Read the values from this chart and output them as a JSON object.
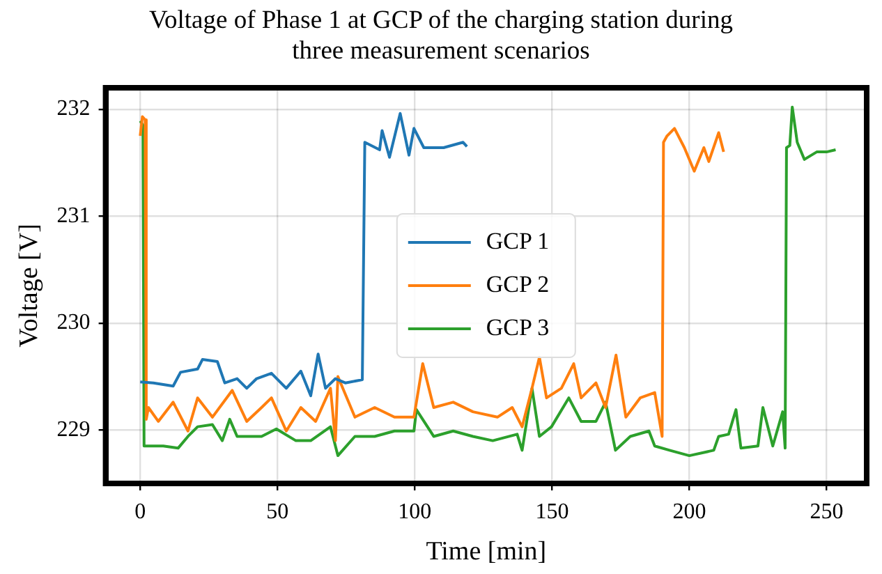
{
  "chart_data": {
    "type": "line",
    "title": "Voltage of Phase 1 at GCP of the charging station during three measurement scenarios",
    "xlabel": "Time [min]",
    "ylabel": "Voltage [V]",
    "xlim": [
      -12.6,
      264.6
    ],
    "xticks": [
      0,
      50,
      100,
      150,
      200,
      250
    ],
    "ylim": [
      228.5,
      232.2
    ],
    "yticks": [
      229,
      230,
      231,
      232
    ],
    "grid": true,
    "legend": "center",
    "marker": "none",
    "line_style": "solid",
    "series": [
      {
        "name": "GCP 1",
        "color": "#1f77b4",
        "x": [
          0,
          4.8,
          12.0,
          14.7,
          20.9,
          22.7,
          28.1,
          30.8,
          35.3,
          38.8,
          42.4,
          47.8,
          53.2,
          58.5,
          62.1,
          64.8,
          67.5,
          71.1,
          74.7,
          80.9,
          81.8,
          87.2,
          88.1,
          90.8,
          94.7,
          97.9,
          99.7,
          103.3,
          110.5,
          117.6,
          119.0
        ],
        "values": [
          229.45,
          229.44,
          229.41,
          229.54,
          229.57,
          229.66,
          229.64,
          229.44,
          229.48,
          229.39,
          229.48,
          229.53,
          229.39,
          229.55,
          229.32,
          229.71,
          229.39,
          229.48,
          229.44,
          229.47,
          231.69,
          231.62,
          231.8,
          231.55,
          231.96,
          231.57,
          231.82,
          231.64,
          231.64,
          231.69,
          231.65
        ]
      },
      {
        "name": "GCP 2",
        "color": "#ff7f0e",
        "x": [
          0,
          0.8,
          1.8,
          2.2,
          3.0,
          6.6,
          12.0,
          17.4,
          20.9,
          26.3,
          33.5,
          38.8,
          44.2,
          47.8,
          53.2,
          58.5,
          63.9,
          69.3,
          71.1,
          72.0,
          78.2,
          85.4,
          92.6,
          99.7,
          102.9,
          106.9,
          114.0,
          121.2,
          130.1,
          135.5,
          139.1,
          142.7,
          145.4,
          148.0,
          153.4,
          157.9,
          160.6,
          166.0,
          169.5,
          173.3,
          176.9,
          182.1,
          187.4,
          190.1,
          190.6,
          191.9,
          194.6,
          198.2,
          201.8,
          205.3,
          207.1,
          210.7,
          212.5
        ],
        "values": [
          231.75,
          231.93,
          231.9,
          229.1,
          229.21,
          229.08,
          229.26,
          228.99,
          229.3,
          229.12,
          229.37,
          229.08,
          229.21,
          229.3,
          228.99,
          229.21,
          229.08,
          229.39,
          228.9,
          229.5,
          229.12,
          229.21,
          229.12,
          229.12,
          229.62,
          229.21,
          229.26,
          229.17,
          229.12,
          229.21,
          229.03,
          229.39,
          229.68,
          229.3,
          229.39,
          229.62,
          229.3,
          229.44,
          229.21,
          229.7,
          229.12,
          229.3,
          229.35,
          228.94,
          231.69,
          231.75,
          231.82,
          231.64,
          231.42,
          231.64,
          231.51,
          231.78,
          231.6
        ]
      },
      {
        "name": "GCP 3",
        "color": "#2ca02c",
        "x": [
          0,
          1.0,
          1.4,
          3.0,
          8.4,
          13.8,
          17.4,
          20.9,
          26.3,
          29.9,
          32.6,
          35.3,
          44.2,
          49.6,
          56.7,
          62.1,
          69.3,
          72.0,
          78.2,
          85.4,
          92.6,
          99.7,
          100.6,
          106.9,
          114.0,
          121.2,
          128.4,
          137.3,
          139.1,
          142.7,
          145.4,
          149.8,
          156.1,
          160.6,
          166.0,
          169.5,
          173.1,
          178.5,
          185.3,
          187.4,
          192.8,
          200.0,
          208.9,
          210.7,
          214.3,
          217.0,
          218.8,
          225.0,
          226.8,
          230.4,
          234.0,
          234.9,
          235.4,
          236.6,
          237.5,
          239.3,
          241.9,
          246.4,
          250.0,
          253.3
        ],
        "values": [
          231.89,
          231.85,
          228.85,
          228.85,
          228.85,
          228.83,
          228.94,
          229.03,
          229.05,
          228.9,
          229.1,
          228.94,
          228.94,
          229.01,
          228.9,
          228.9,
          229.03,
          228.76,
          228.94,
          228.94,
          228.99,
          228.99,
          229.19,
          228.94,
          228.99,
          228.94,
          228.9,
          228.96,
          228.81,
          229.39,
          228.94,
          229.03,
          229.3,
          229.08,
          229.08,
          229.26,
          228.81,
          228.94,
          228.99,
          228.85,
          228.81,
          228.76,
          228.81,
          228.94,
          228.96,
          229.19,
          228.83,
          228.85,
          229.21,
          228.85,
          229.17,
          228.83,
          231.64,
          231.66,
          232.02,
          231.69,
          231.53,
          231.6,
          231.6,
          231.62
        ]
      }
    ]
  }
}
